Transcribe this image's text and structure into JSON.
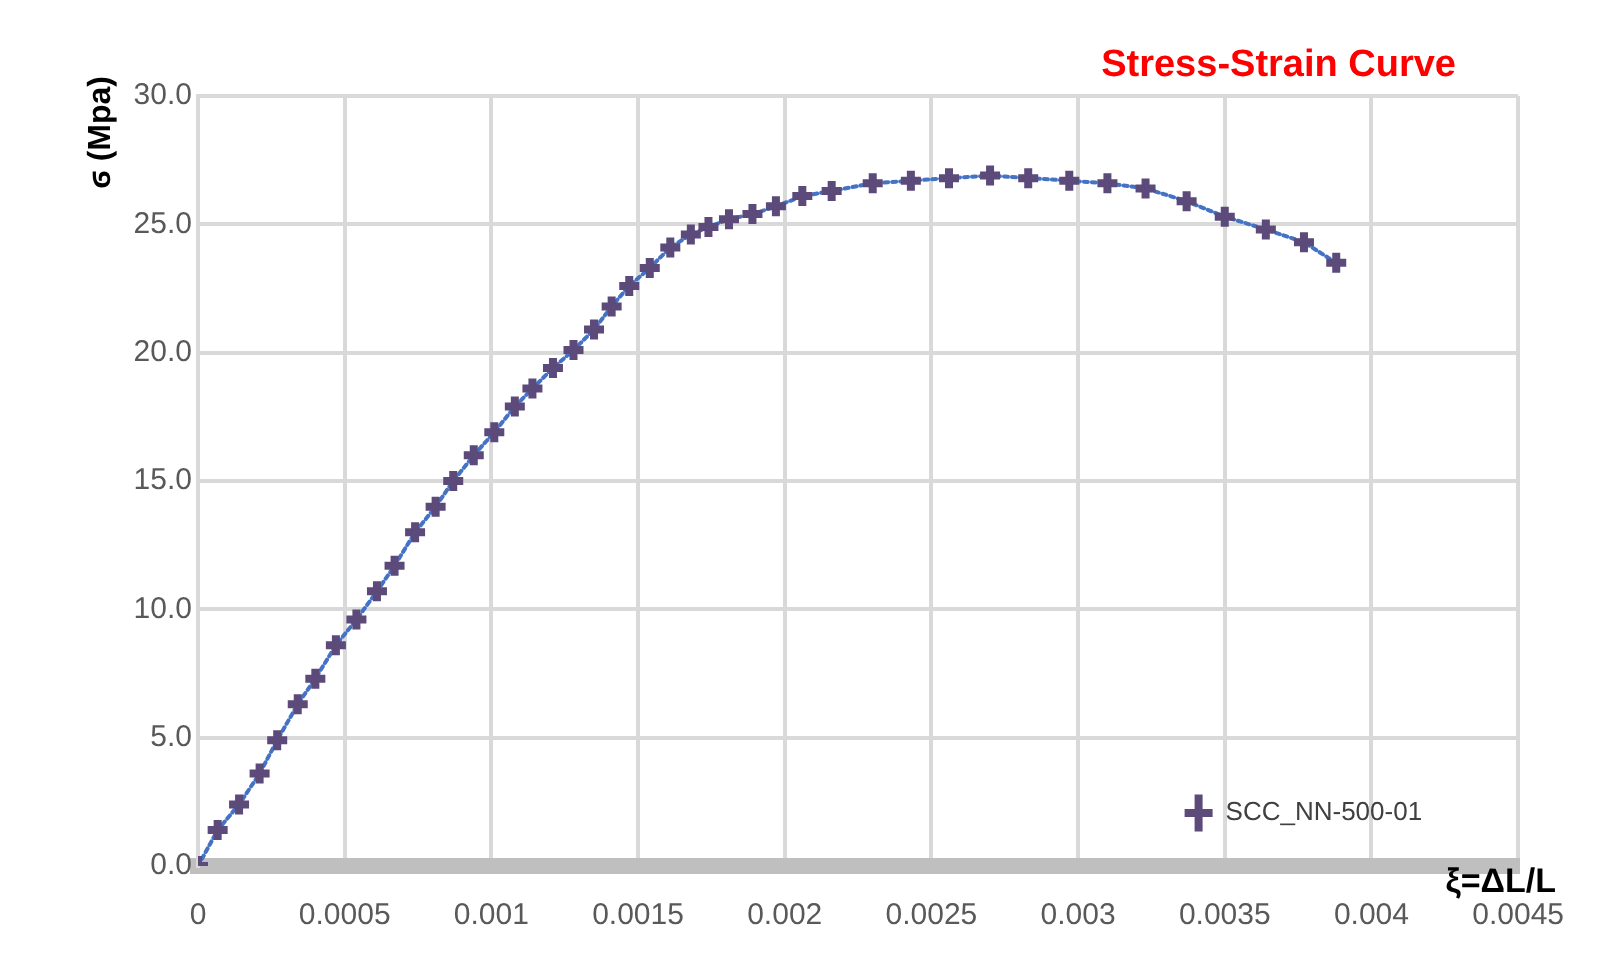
{
  "chart_data": {
    "type": "line",
    "title": "Stress-Strain Curve",
    "xlabel": "ξ=ΔL/L",
    "ylabel": "ϭ (Mpa)",
    "x": [
      0,
      6.7e-05,
      0.00014,
      0.00021,
      0.00027,
      0.00034,
      0.0004,
      0.00047,
      0.00054,
      0.00061,
      0.00067,
      0.00074,
      0.00081,
      0.00087,
      0.00094,
      0.00101,
      0.00108,
      0.00114,
      0.00121,
      0.00128,
      0.00135,
      0.00141,
      0.00147,
      0.00154,
      0.00161,
      0.00168,
      0.00174,
      0.00181,
      0.00189,
      0.00197,
      0.00206,
      0.00216,
      0.0023,
      0.00243,
      0.00256,
      0.0027,
      0.00283,
      0.00297,
      0.0031,
      0.00323,
      0.00337,
      0.0035,
      0.00364,
      0.00377,
      0.00388
    ],
    "series": [
      {
        "name": "SCC_NN-500-01",
        "color": "#5b4a7a",
        "values": [
          0,
          1.4,
          2.4,
          3.6,
          4.9,
          6.3,
          7.3,
          8.6,
          9.6,
          10.7,
          11.7,
          13.0,
          14.0,
          15.0,
          16.0,
          16.9,
          17.9,
          18.6,
          19.4,
          20.1,
          20.9,
          21.8,
          22.6,
          23.3,
          24.1,
          24.6,
          24.9,
          25.2,
          25.4,
          25.7,
          26.1,
          26.3,
          26.6,
          26.7,
          26.8,
          26.9,
          26.8,
          26.7,
          26.6,
          26.4,
          25.9,
          25.3,
          24.8,
          24.3,
          23.5
        ]
      }
    ],
    "xlim": [
      0,
      0.0045
    ],
    "xticks": [
      0,
      0.0005,
      0.001,
      0.0015,
      0.002,
      0.0025,
      0.003,
      0.0035,
      0.004,
      0.0045
    ],
    "ylim": [
      0,
      30
    ],
    "yticks": [
      {
        "value": 0,
        "label": "0.0"
      },
      {
        "value": 5,
        "label": "5.0"
      },
      {
        "value": 10,
        "label": "10.0"
      },
      {
        "value": 15,
        "label": "15.0"
      },
      {
        "value": 20,
        "label": "20.0"
      },
      {
        "value": 25,
        "label": "25.0"
      },
      {
        "value": 30,
        "label": "30.0"
      }
    ],
    "grid": true,
    "legend": "bottom right",
    "marker": "cross",
    "line_style": "dotted"
  }
}
